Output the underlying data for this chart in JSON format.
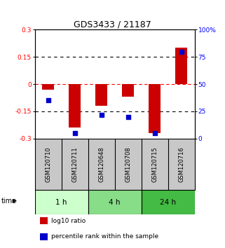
{
  "title": "GDS3433 / 21187",
  "categories": [
    "GSM120710",
    "GSM120711",
    "GSM120648",
    "GSM120708",
    "GSM120715",
    "GSM120716"
  ],
  "time_groups": [
    {
      "label": "1 h",
      "cols": [
        0,
        1
      ],
      "color": "#ccffcc"
    },
    {
      "label": "4 h",
      "cols": [
        2,
        3
      ],
      "color": "#88dd88"
    },
    {
      "label": "24 h",
      "cols": [
        4,
        5
      ],
      "color": "#44bb44"
    }
  ],
  "log10_ratio": [
    -0.03,
    -0.24,
    -0.12,
    -0.07,
    -0.27,
    0.2
  ],
  "percentile_rank": [
    35,
    5,
    22,
    20,
    5,
    80
  ],
  "bar_color": "#cc0000",
  "dot_color": "#0000cc",
  "ylim_left": [
    -0.3,
    0.3
  ],
  "ylim_right": [
    0,
    100
  ],
  "yticks_left": [
    -0.3,
    -0.15,
    0,
    0.15,
    0.3
  ],
  "yticks_right": [
    0,
    25,
    50,
    75,
    100
  ],
  "ytick_labels_left": [
    "-0.3",
    "-0.15",
    "0",
    "0.15",
    "0.3"
  ],
  "ytick_labels_right": [
    "0",
    "25",
    "50",
    "75",
    "100%"
  ],
  "legend_items": [
    {
      "color": "#cc0000",
      "label": "log10 ratio"
    },
    {
      "color": "#0000cc",
      "label": "percentile rank within the sample"
    }
  ],
  "background_color": "#ffffff",
  "plot_bg": "#ffffff",
  "label_bg": "#c8c8c8"
}
